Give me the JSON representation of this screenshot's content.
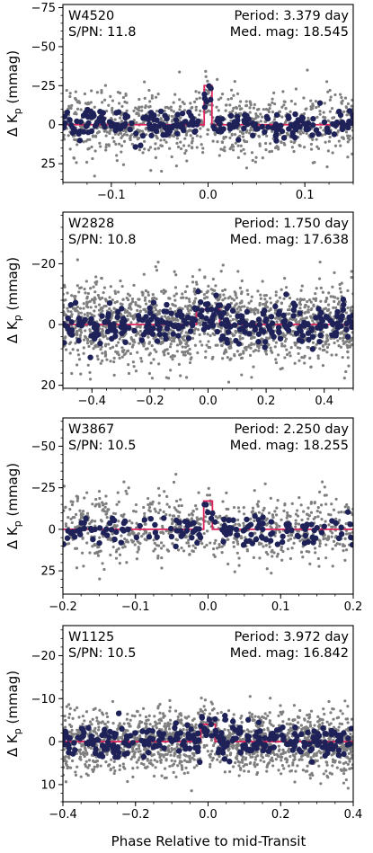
{
  "figure": {
    "xlabel": "Phase Relative to mid-Transit",
    "ylabel": "Δ K",
    "ylabel_sub": "p",
    "ylabel_unit": " (mmag)",
    "colors": {
      "binned": "#1e2258",
      "raw": "#7f7f7f",
      "model": "#e0245e"
    }
  },
  "chart_data": [
    {
      "type": "scatter",
      "id": "W4520",
      "labels": {
        "name": "W4520",
        "period": "Period: 3.379 day",
        "snr": "S/PN: 11.8",
        "medmag": "Med. mag: 18.545"
      },
      "xlim": [
        -0.15,
        0.15
      ],
      "ylim": [
        37,
        -77
      ],
      "xticks": [
        -0.1,
        0.0,
        0.1
      ],
      "xtick_labels": [
        "−0.1",
        "0.0",
        "0.1"
      ],
      "yticks": [
        -75,
        -50,
        -25,
        0,
        25
      ],
      "ytick_labels": [
        "−75",
        "−50",
        "−25",
        "0",
        "25"
      ],
      "model": {
        "depth": 25,
        "half_width": 0.004,
        "offset": 0.0
      },
      "raw_scatter": {
        "sigma": 10,
        "count": 900
      },
      "binned_scatter": {
        "sigma": 4.5,
        "count": 230
      }
    },
    {
      "type": "scatter",
      "id": "W2828",
      "labels": {
        "name": "W2828",
        "period": "Period: 1.750 day",
        "snr": "S/PN: 10.8",
        "medmag": "Med. mag: 17.638"
      },
      "xlim": [
        -0.5,
        0.5
      ],
      "ylim": [
        21,
        -37
      ],
      "xticks": [
        -0.4,
        -0.2,
        0.0,
        0.2,
        0.4
      ],
      "xtick_labels": [
        "−0.4",
        "−0.2",
        "0.0",
        "0.2",
        "0.4"
      ],
      "yticks": [
        -20,
        0,
        20
      ],
      "ytick_labels": [
        "−20",
        "0",
        "20"
      ],
      "model": {
        "depth": 5,
        "half_width": 0.04,
        "offset": 0.0
      },
      "raw_scatter": {
        "sigma": 6.5,
        "count": 1700
      },
      "binned_scatter": {
        "sigma": 3.2,
        "count": 300
      }
    },
    {
      "type": "scatter",
      "id": "W3867",
      "labels": {
        "name": "W3867",
        "period": "Period: 2.250 day",
        "snr": "S/PN: 10.5",
        "medmag": "Med. mag: 18.255"
      },
      "xlim": [
        -0.2,
        0.2
      ],
      "ylim": [
        39,
        -67
      ],
      "xticks": [
        -0.2,
        -0.1,
        0.0,
        0.1,
        0.2
      ],
      "xtick_labels": [
        "−0.2",
        "−0.1",
        "0.0",
        "0.1",
        "0.2"
      ],
      "yticks": [
        -50,
        -25,
        0,
        25
      ],
      "ytick_labels": [
        "−50",
        "−25",
        "0",
        "25"
      ],
      "model": {
        "depth": 17,
        "half_width": 0.006,
        "offset": 0.0
      },
      "raw_scatter": {
        "sigma": 10,
        "count": 800
      },
      "binned_scatter": {
        "sigma": 4.5,
        "count": 150
      }
    },
    {
      "type": "scatter",
      "id": "W1125",
      "labels": {
        "name": "W1125",
        "period": "Period: 3.972 day",
        "snr": "S/PN: 10.5",
        "medmag": "Med. mag: 16.842"
      },
      "xlim": [
        -0.4,
        0.4
      ],
      "ylim": [
        14,
        -27
      ],
      "xticks": [
        -0.4,
        -0.2,
        0.0,
        0.2,
        0.4
      ],
      "xtick_labels": [
        "−0.4",
        "−0.2",
        "0.0",
        "0.2",
        "0.4"
      ],
      "yticks": [
        -20,
        -10,
        0,
        10
      ],
      "ytick_labels": [
        "−20",
        "−10",
        "0",
        "10"
      ],
      "model": {
        "depth": 4,
        "half_width": 0.02,
        "offset": 0.0
      },
      "raw_scatter": {
        "sigma": 3.5,
        "count": 1700
      },
      "binned_scatter": {
        "sigma": 2.0,
        "count": 300
      }
    }
  ]
}
